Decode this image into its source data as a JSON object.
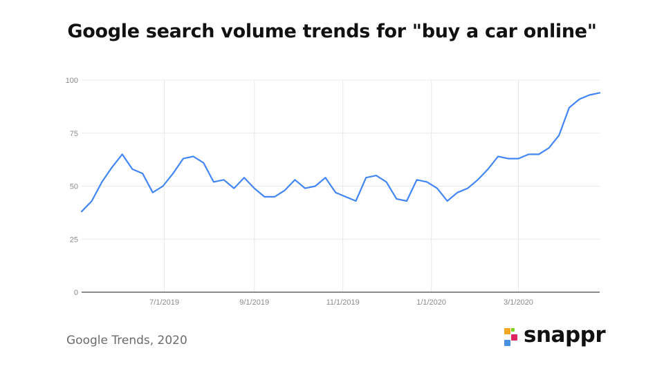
{
  "title": "Google search volume trends for \"buy a car online\"",
  "source": "Google Trends, 2020",
  "brand": {
    "name": "snappr",
    "logo_colors": [
      "#f5a623",
      "#e0245e",
      "#4a90e2",
      "#7ed321"
    ]
  },
  "colors": {
    "line": "#4285f4",
    "grid": "#e8e8e8",
    "axis": "#444444",
    "tick_text": "#8a8a8a"
  },
  "chart_data": {
    "type": "line",
    "title": "Google search volume trends for \"buy a car online\"",
    "xlabel": "",
    "ylabel": "",
    "ylim": [
      0,
      100
    ],
    "yticks": [
      0,
      25,
      50,
      75,
      100
    ],
    "xticks": [
      "7/1/2019",
      "9/1/2019",
      "11/1/2019",
      "1/1/2020",
      "3/1/2020"
    ],
    "xlim": [
      "2019-05-05",
      "2020-04-26"
    ],
    "grid": true,
    "legend": "none",
    "series": [
      {
        "x": [
          "2019-05-05",
          "2019-05-12",
          "2019-05-19",
          "2019-05-26",
          "2019-06-02",
          "2019-06-09",
          "2019-06-16",
          "2019-06-23",
          "2019-06-30",
          "2019-07-07",
          "2019-07-14",
          "2019-07-21",
          "2019-07-28",
          "2019-08-04",
          "2019-08-11",
          "2019-08-18",
          "2019-08-25",
          "2019-09-01",
          "2019-09-08",
          "2019-09-15",
          "2019-09-22",
          "2019-09-29",
          "2019-10-06",
          "2019-10-13",
          "2019-10-20",
          "2019-10-27",
          "2019-11-03",
          "2019-11-10",
          "2019-11-17",
          "2019-11-24",
          "2019-12-01",
          "2019-12-08",
          "2019-12-15",
          "2019-12-22",
          "2019-12-29",
          "2020-01-05",
          "2020-01-12",
          "2020-01-19",
          "2020-01-26",
          "2020-02-02",
          "2020-02-09",
          "2020-02-16",
          "2020-02-23",
          "2020-03-01",
          "2020-03-08",
          "2020-03-15",
          "2020-03-22",
          "2020-03-29",
          "2020-04-05",
          "2020-04-12",
          "2020-04-19",
          "2020-04-26"
        ],
        "values": [
          38,
          43,
          52,
          59,
          65,
          58,
          56,
          47,
          50,
          56,
          63,
          64,
          61,
          52,
          53,
          49,
          54,
          49,
          45,
          45,
          48,
          53,
          49,
          50,
          54,
          47,
          45,
          43,
          54,
          55,
          52,
          44,
          43,
          53,
          52,
          49,
          43,
          47,
          49,
          53,
          58,
          64,
          63,
          63,
          65,
          65,
          68,
          74,
          87,
          91,
          93,
          94
        ]
      }
    ]
  }
}
